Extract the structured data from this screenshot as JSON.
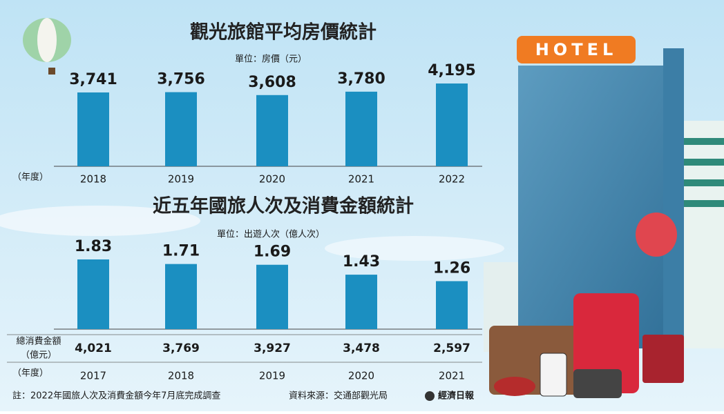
{
  "chart_data": [
    {
      "type": "bar",
      "title": "觀光旅館平均房價統計",
      "subtitle": "單位：房價（元）",
      "x_label": "（年度）",
      "categories": [
        "2018",
        "2019",
        "2020",
        "2021",
        "2022"
      ],
      "values": [
        3741,
        3756,
        3608,
        3780,
        4195
      ],
      "value_labels": [
        "3,741",
        "3,756",
        "3,608",
        "3,780",
        "4,195"
      ],
      "color": "#1b8fc1"
    },
    {
      "type": "bar",
      "title": "近五年國旅人次及消費金額統計",
      "subtitle": "單位：出遊人次（億人次）",
      "x_label": "（年度）",
      "categories": [
        "2017",
        "2018",
        "2019",
        "2020",
        "2021"
      ],
      "values": [
        1.83,
        1.71,
        1.69,
        1.43,
        1.26
      ],
      "color": "#1b8fc1",
      "spending": {
        "label": [
          "總消費金額",
          "（億元）"
        ],
        "values": [
          "4,021",
          "3,769",
          "3,927",
          "3,478",
          "2,597"
        ]
      }
    }
  ],
  "note": "註：2022年國旅人次及消費金額今年7月底完成調查",
  "source": "資料來源：交通部觀光局",
  "logo": "經濟日報",
  "hotel_sign": "HOTEL"
}
